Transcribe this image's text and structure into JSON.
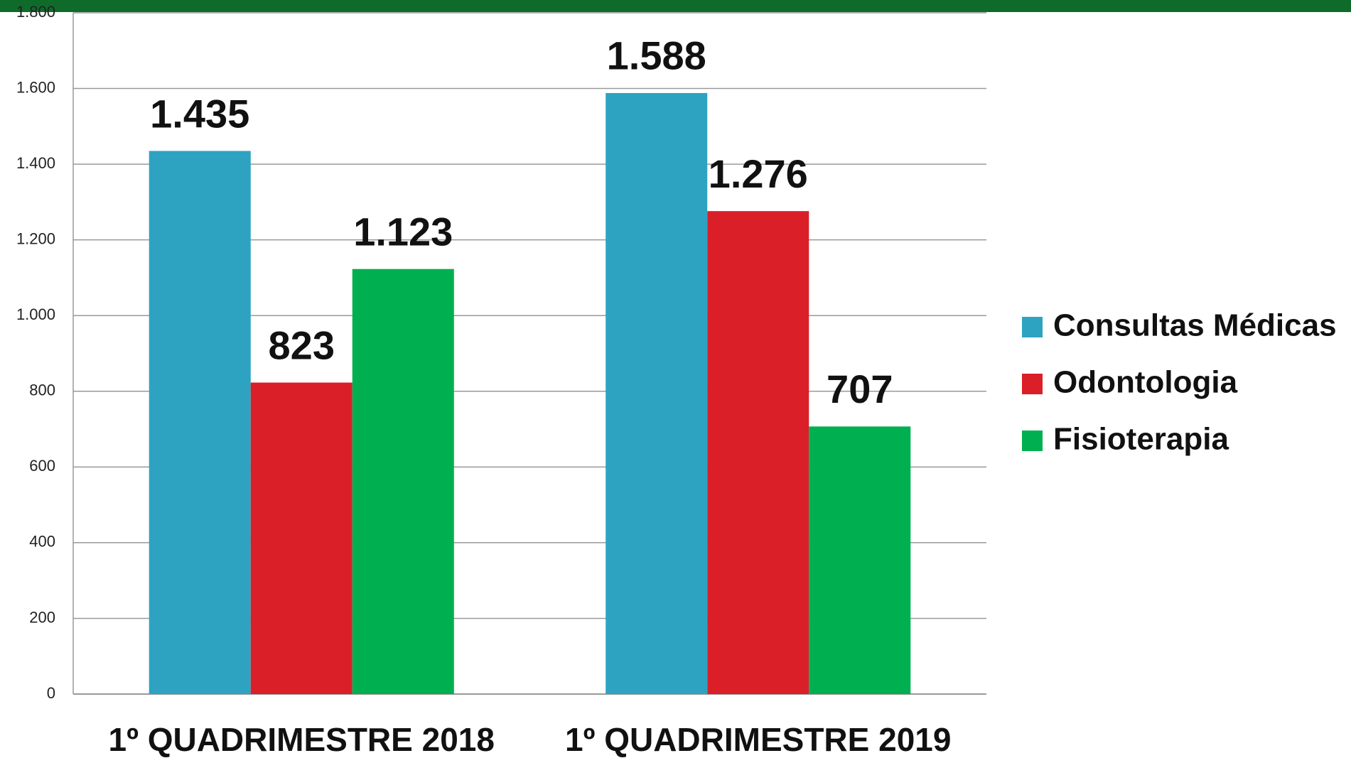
{
  "chart_data": {
    "type": "bar",
    "categories": [
      "1º QUADRIMESTRE 2018",
      "1º QUADRIMESTRE 2019"
    ],
    "series": [
      {
        "name": "Consultas Médicas",
        "color": "#2ea3c1",
        "values": [
          1435,
          1588
        ],
        "value_labels": [
          "1.435",
          "1.588"
        ]
      },
      {
        "name": "Odontologia",
        "color": "#da1f28",
        "values": [
          823,
          1276
        ],
        "value_labels": [
          "823",
          "1.276"
        ]
      },
      {
        "name": "Fisioterapia",
        "color": "#00b050",
        "values": [
          1123,
          707
        ],
        "value_labels": [
          "1.123",
          "707"
        ]
      }
    ],
    "ylim": [
      0,
      1800
    ],
    "yticks": [
      0,
      200,
      400,
      600,
      800,
      {
        "value": 1000,
        "label": "1.000"
      },
      {
        "value": 1200,
        "label": "1.200"
      },
      {
        "value": 1400,
        "label": "1.400"
      },
      {
        "value": 1600,
        "label": "1.600"
      },
      {
        "value": 1800,
        "label": "1.800"
      }
    ],
    "grid": true,
    "legend": "right"
  }
}
